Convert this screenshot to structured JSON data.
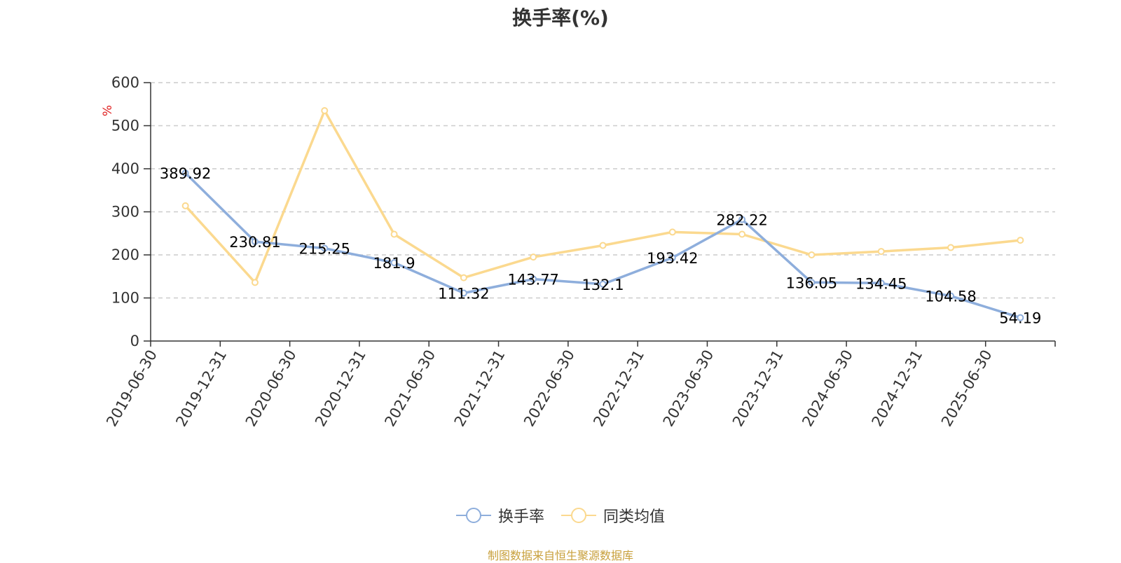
{
  "chart_data": {
    "type": "line",
    "title": "换手率(%)",
    "ylabel": "%",
    "ylim": [
      0,
      600
    ],
    "yticks": [
      0,
      100,
      200,
      300,
      400,
      500,
      600
    ],
    "grid": true,
    "legend_position": "bottom",
    "categories": [
      "2019-06-30",
      "2019-12-31",
      "2020-06-30",
      "2020-12-31",
      "2021-06-30",
      "2021-12-31",
      "2022-06-30",
      "2022-12-31",
      "2023-06-30",
      "2023-12-31",
      "2024-06-30",
      "2024-12-31",
      "2025-06-30"
    ],
    "series": [
      {
        "name": "换手率",
        "color": "#8eaedc",
        "values": [
          389.92,
          230.81,
          215.25,
          181.9,
          111.32,
          143.77,
          132.1,
          193.42,
          282.22,
          136.05,
          134.45,
          104.58,
          54.19
        ],
        "labels": [
          "389.92",
          "230.81",
          "215.25",
          "181.9",
          "111.32",
          "143.77",
          "132.1",
          "193.42",
          "282.22",
          "136.05",
          "134.45",
          "104.58",
          "54.19"
        ]
      },
      {
        "name": "同类均值",
        "color": "#fbd98f",
        "values": [
          314,
          136,
          535,
          248,
          147,
          195,
          222,
          253,
          248,
          200,
          208,
          217,
          234
        ]
      }
    ]
  },
  "source_note": "制图数据来自恒生聚源数据库",
  "colors": {
    "ylabel": "#e02020",
    "axis": "#333333",
    "grid": "#cccccc",
    "source": "#c8a03c"
  }
}
